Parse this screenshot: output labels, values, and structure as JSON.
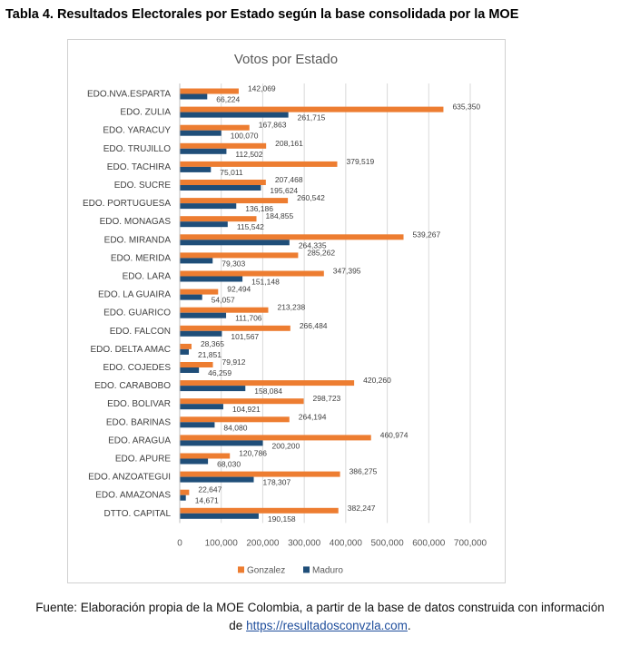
{
  "document": {
    "title": "Tabla 4. Resultados Electorales por Estado según la base consolidada por la MOE",
    "caption_line1": "Fuente: Elaboración propia de la MOE Colombia, a partir de la base de datos construida con información",
    "caption_prefix": "de ",
    "caption_link": "https://resultadosconvzla.com",
    "caption_suffix": "."
  },
  "chart_data": {
    "type": "bar",
    "orientation": "horizontal",
    "title": "Votos por Estado",
    "xlabel": "",
    "ylabel": "",
    "xlim": [
      0,
      700000
    ],
    "x_ticks": [
      "0",
      "100,000",
      "200,000",
      "300,000",
      "400,000",
      "500,000",
      "600,000",
      "700,000"
    ],
    "grid": true,
    "legend_position": "bottom",
    "categories": [
      "EDO.NVA.ESPARTA",
      "EDO. ZULIA",
      "EDO. YARACUY",
      "EDO. TRUJILLO",
      "EDO. TACHIRA",
      "EDO. SUCRE",
      "EDO. PORTUGUESA",
      "EDO. MONAGAS",
      "EDO. MIRANDA",
      "EDO. MERIDA",
      "EDO. LARA",
      "EDO. LA GUAIRA",
      "EDO. GUARICO",
      "EDO. FALCON",
      "EDO. DELTA AMAC",
      "EDO. COJEDES",
      "EDO. CARABOBO",
      "EDO. BOLIVAR",
      "EDO. BARINAS",
      "EDO. ARAGUA",
      "EDO. APURE",
      "EDO. ANZOATEGUI",
      "EDO. AMAZONAS",
      "DTTO. CAPITAL"
    ],
    "series": [
      {
        "name": "Gonzalez",
        "color": "#ed7d31",
        "values": [
          142069,
          635350,
          167863,
          208161,
          379519,
          207468,
          260542,
          184855,
          539267,
          285262,
          347395,
          92494,
          213238,
          266484,
          28365,
          79912,
          420260,
          298723,
          264194,
          460974,
          120786,
          386275,
          22647,
          382247
        ],
        "labels": [
          "142,069",
          "635,350",
          "167,863",
          "208,161",
          "379,519",
          "207,468",
          "260,542",
          "184,855",
          "539,267",
          "285,262",
          "347,395",
          "92,494",
          "213,238",
          "266,484",
          "28,365",
          "79,912",
          "420,260",
          "298,723",
          "264,194",
          "460,974",
          "120,786",
          "386,275",
          "22,647",
          "382,247"
        ]
      },
      {
        "name": "Maduro",
        "color": "#1f4e79",
        "values": [
          66224,
          261715,
          100070,
          112502,
          75011,
          195624,
          136186,
          115542,
          264335,
          79303,
          151148,
          54057,
          111706,
          101567,
          21851,
          46259,
          158084,
          104921,
          84080,
          200200,
          68030,
          178307,
          14671,
          190158
        ],
        "labels": [
          "66,224",
          "261,715",
          "100,070",
          "112,502",
          "75,011",
          "195,624",
          "136,186",
          "115,542",
          "264,335",
          "79,303",
          "151,148",
          "54,057",
          "111,706",
          "101,567",
          "21,851",
          "46,259",
          "158,084",
          "104,921",
          "84,080",
          "200,200",
          "68,030",
          "178,307",
          "14,671",
          "190,158"
        ]
      }
    ]
  }
}
